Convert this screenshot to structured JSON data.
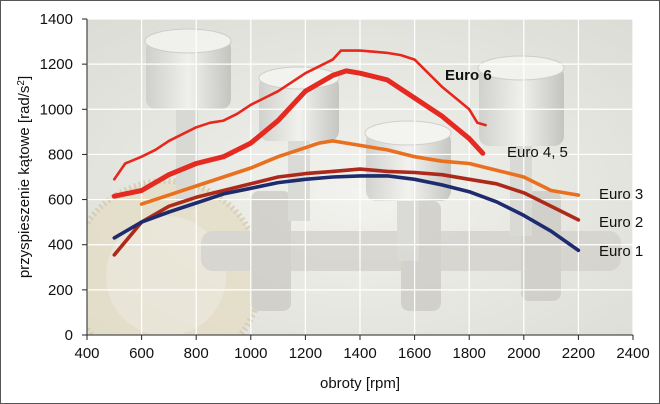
{
  "chart_data": {
    "type": "line",
    "title": "",
    "xlabel": "obroty [rpm]",
    "ylabel_main": "przyspieszenie kątowe [rad/s",
    "ylabel_sup": "2",
    "ylabel_close": "]",
    "xlim": [
      400,
      2400
    ],
    "ylim": [
      0,
      1400
    ],
    "xticks": [
      400,
      600,
      800,
      1000,
      1200,
      1400,
      1600,
      1800,
      2000,
      2200,
      2400
    ],
    "yticks": [
      0,
      200,
      400,
      600,
      800,
      1000,
      1200,
      1400
    ],
    "grid": true,
    "series": [
      {
        "name": "Euro 6",
        "color": "#e8271c",
        "bold": true,
        "x": [
          500,
          540,
          600,
          650,
          700,
          750,
          800,
          850,
          900,
          950,
          1000,
          1050,
          1100,
          1150,
          1200,
          1250,
          1300,
          1330,
          1400,
          1450,
          1500,
          1550,
          1600,
          1650,
          1700,
          1750,
          1800,
          1830,
          1860
        ],
        "y": [
          690,
          760,
          790,
          820,
          860,
          890,
          920,
          940,
          950,
          980,
          1020,
          1050,
          1080,
          1120,
          1160,
          1190,
          1220,
          1260,
          1260,
          1255,
          1250,
          1240,
          1220,
          1160,
          1100,
          1050,
          1000,
          940,
          930
        ]
      },
      {
        "name": "Euro 4, 5",
        "color": "#e52a22",
        "bold": false,
        "x": [
          500,
          600,
          700,
          800,
          900,
          1000,
          1100,
          1200,
          1300,
          1350,
          1400,
          1500,
          1600,
          1700,
          1800,
          1850
        ],
        "y": [
          615,
          640,
          710,
          760,
          790,
          850,
          950,
          1080,
          1150,
          1170,
          1160,
          1130,
          1050,
          970,
          870,
          805
        ]
      },
      {
        "name": "Euro 3",
        "color": "#e8701e",
        "bold": false,
        "x": [
          600,
          700,
          800,
          900,
          1000,
          1100,
          1200,
          1250,
          1300,
          1400,
          1500,
          1600,
          1700,
          1800,
          1900,
          2000,
          2100,
          2200
        ],
        "y": [
          580,
          620,
          660,
          700,
          740,
          790,
          830,
          850,
          860,
          840,
          820,
          790,
          770,
          760,
          730,
          700,
          640,
          620
        ]
      },
      {
        "name": "Euro 2",
        "color": "#ad2a1a",
        "bold": false,
        "x": [
          500,
          600,
          700,
          800,
          900,
          1000,
          1100,
          1200,
          1300,
          1400,
          1500,
          1600,
          1700,
          1800,
          1900,
          2000,
          2100,
          2200
        ],
        "y": [
          355,
          500,
          570,
          610,
          640,
          670,
          700,
          715,
          725,
          735,
          725,
          720,
          710,
          690,
          670,
          630,
          570,
          510
        ]
      },
      {
        "name": "Euro 1",
        "color": "#1e2c6e",
        "bold": false,
        "x": [
          500,
          600,
          700,
          800,
          900,
          1000,
          1100,
          1200,
          1300,
          1400,
          1500,
          1600,
          1700,
          1800,
          1900,
          2000,
          2100,
          2200
        ],
        "y": [
          430,
          500,
          545,
          585,
          625,
          650,
          675,
          690,
          700,
          705,
          705,
          690,
          665,
          635,
          590,
          530,
          460,
          375
        ]
      }
    ]
  }
}
